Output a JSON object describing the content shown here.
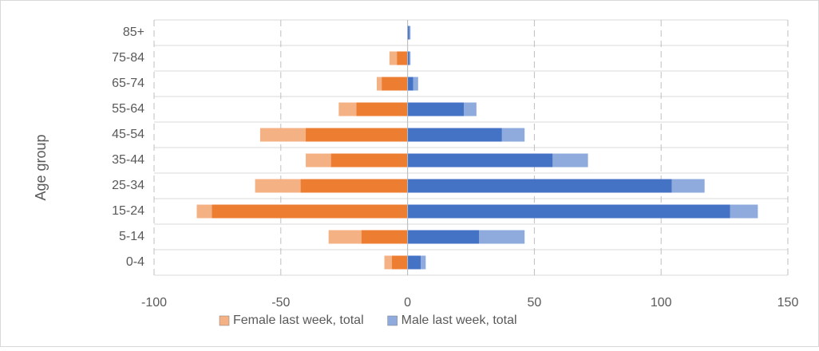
{
  "chart_data": {
    "type": "bar",
    "orientation": "horizontal",
    "ylabel": "Age group",
    "categories": [
      "0-4",
      "5-14",
      "15-24",
      "25-34",
      "35-44",
      "45-54",
      "55-64",
      "65-74",
      "75-84",
      "85+"
    ],
    "series": [
      {
        "name": "Female last week, total",
        "color": "#f4b183",
        "values": [
          -9,
          -31,
          -83,
          -60,
          -40,
          -58,
          -27,
          -12,
          -7,
          0
        ]
      },
      {
        "name": "Male last week, total",
        "color": "#8faadc",
        "values": [
          7,
          46,
          138,
          117,
          71,
          46,
          27,
          4,
          1,
          1
        ]
      },
      {
        "color": "#ed7d31",
        "values": [
          -6,
          -18,
          -77,
          -42,
          -30,
          -40,
          -20,
          -10,
          -4,
          0
        ]
      },
      {
        "color": "#4472c4",
        "values": [
          5,
          28,
          127,
          104,
          57,
          37,
          22,
          2,
          0.5,
          0.5
        ]
      }
    ],
    "xlim": [
      -100,
      150
    ],
    "xticks": [
      -100,
      -50,
      0,
      50,
      100,
      150
    ],
    "grid": true,
    "legend": "bottom"
  }
}
